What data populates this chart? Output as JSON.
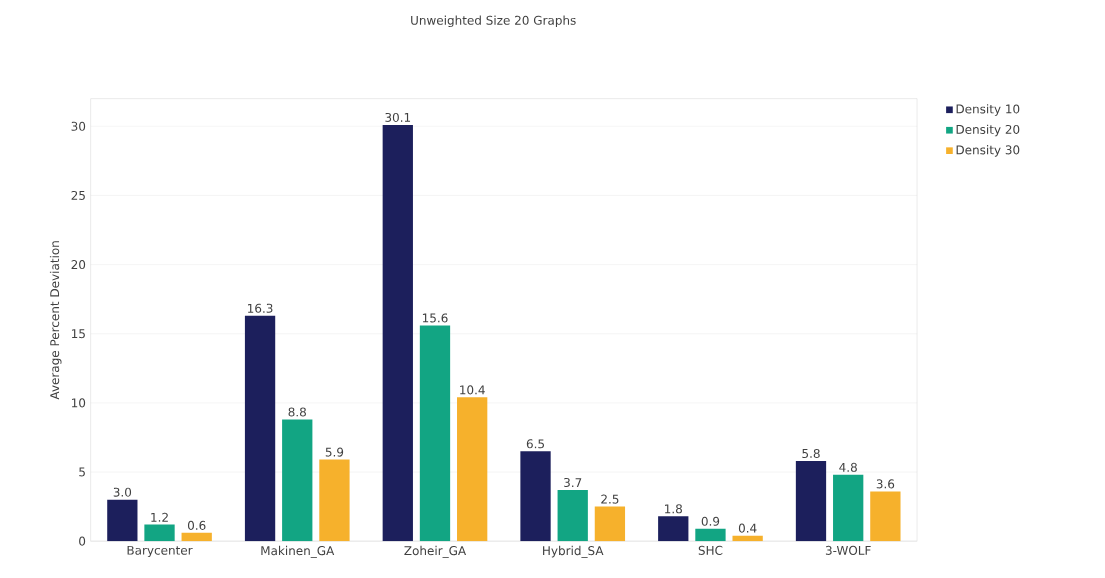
{
  "chart_data": {
    "type": "bar",
    "title": "Unweighted Size 20 Graphs",
    "ylabel": "Average Percent Deviation",
    "categories": [
      "Barycenter",
      "Makinen_GA",
      "Zoheir_GA",
      "Hybrid_SA",
      "SHC",
      "3-WOLF"
    ],
    "series": [
      {
        "name": "Density 10",
        "color": "#1c1f5c",
        "values": [
          3.0,
          16.3,
          30.1,
          6.5,
          1.8,
          5.8
        ],
        "value_labels": [
          "3.0",
          "16.3",
          "30.1",
          "6.5",
          "1.8",
          "5.8"
        ]
      },
      {
        "name": "Density 20",
        "color": "#12a583",
        "values": [
          1.2,
          8.8,
          15.6,
          3.7,
          0.9,
          4.8
        ],
        "value_labels": [
          "1.2",
          "8.8",
          "15.6",
          "3.7",
          "0.9",
          "4.8"
        ]
      },
      {
        "name": "Density 30",
        "color": "#f6b12c",
        "values": [
          0.6,
          5.9,
          10.4,
          2.5,
          0.4,
          3.6
        ],
        "value_labels": [
          "0.6",
          "5.9",
          "10.4",
          "2.5",
          "0.4",
          "3.6"
        ]
      }
    ],
    "ylim": [
      0,
      32
    ],
    "yticks": [
      0,
      5,
      10,
      15,
      20,
      25,
      30
    ],
    "grid": "y",
    "legend": "top right"
  }
}
